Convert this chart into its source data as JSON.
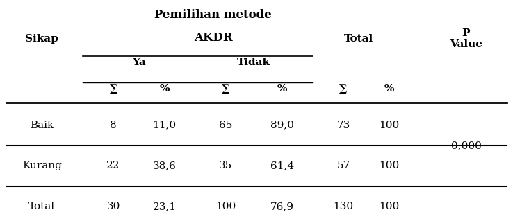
{
  "title_line1": "Pemilihan metode",
  "title_line2": "AKDR",
  "col_sikap": "Sikap",
  "col_ya": "Ya",
  "col_tidak": "Tidak",
  "col_total": "Total",
  "col_pvalue": "P\nValue",
  "sym": "∑",
  "pct": "%",
  "rows": [
    {
      "label": "Baik",
      "ya_n": "8",
      "ya_p": "11,0",
      "tidak_n": "65",
      "tidak_p": "89,0",
      "tot_n": "73",
      "tot_p": "100"
    },
    {
      "label": "Kurang",
      "ya_n": "22",
      "ya_p": "38,6",
      "tidak_n": "35",
      "tidak_p": "61,4",
      "tot_n": "57",
      "tot_p": "100"
    },
    {
      "label": "Total",
      "ya_n": "30",
      "ya_p": "23,1",
      "tidak_n": "100",
      "tidak_p": "76,9",
      "tot_n": "130",
      "tot_p": "100"
    }
  ],
  "pvalue": "0,000",
  "bg_color": "#ffffff",
  "text_color": "#000000",
  "font_size_header": 11,
  "font_size_data": 11,
  "font_size_title": 12
}
